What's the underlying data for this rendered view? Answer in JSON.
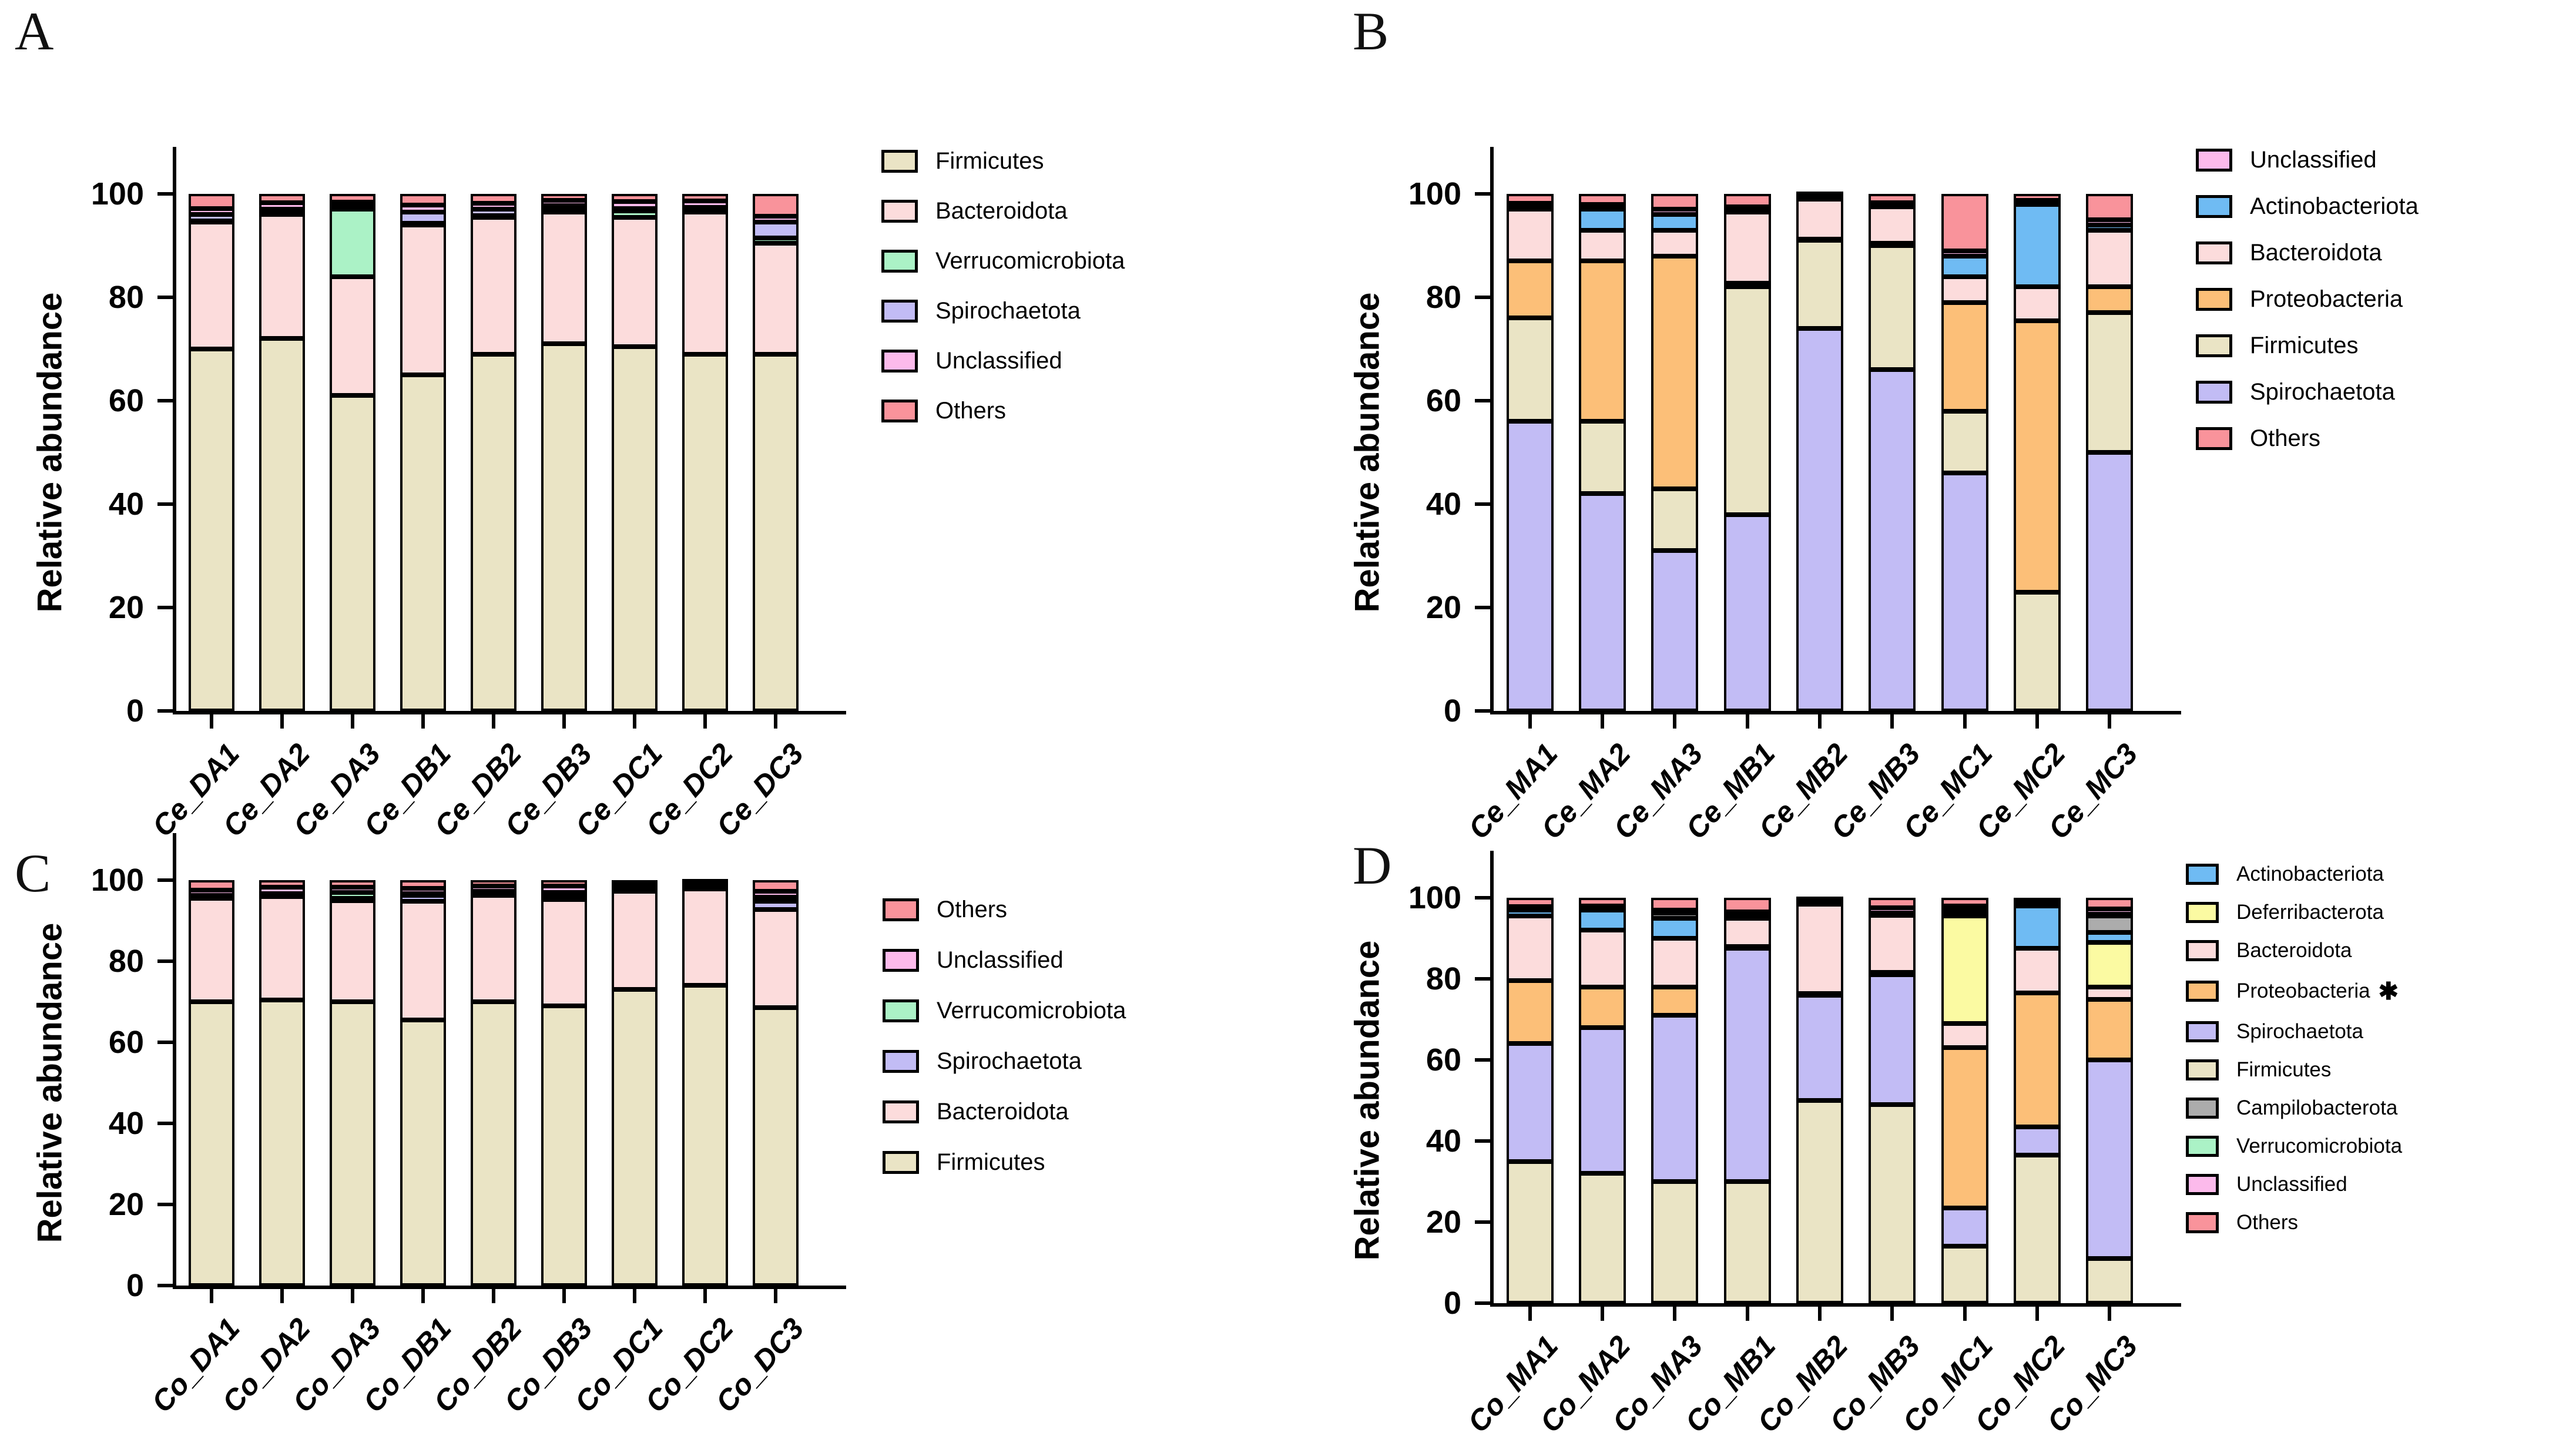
{
  "chart_data": [
    {
      "panel": "A",
      "type": "bar",
      "stacked": true,
      "ylabel": "Relative abundance",
      "ylim": [
        0,
        100
      ],
      "yticks": [
        0,
        20,
        40,
        60,
        80,
        100
      ],
      "grid": false,
      "legend_position": "right",
      "categories": [
        "Ce_DA1",
        "Ce_DA2",
        "Ce_DA3",
        "Ce_DB1",
        "Ce_DB2",
        "Ce_DB3",
        "Ce_DC1",
        "Ce_DC2",
        "Ce_DC3"
      ],
      "series": [
        {
          "name": "Firmicutes",
          "color": "#EAE4C5",
          "values": [
            70,
            72,
            61,
            65,
            69,
            71,
            70.5,
            69,
            69
          ]
        },
        {
          "name": "Bacteroidota",
          "color": "#FCDCDC",
          "values": [
            24.5,
            24,
            23,
            29,
            26.5,
            25.5,
            25,
            27.5,
            21.5
          ]
        },
        {
          "name": "Verrucomicrobiota",
          "color": "#ABF2C6",
          "values": [
            0.3,
            0.3,
            13,
            0.3,
            0.3,
            0.4,
            1.2,
            0.3,
            1
          ]
        },
        {
          "name": "Spirochaetota",
          "color": "#C2BCF5",
          "values": [
            1.2,
            0.8,
            0.6,
            2.2,
            1.2,
            0.8,
            0.5,
            0.6,
            3
          ]
        },
        {
          "name": "Unclassified",
          "color": "#FCBAEB",
          "values": [
            1.2,
            1.2,
            0.8,
            1.3,
            1.2,
            1.1,
            1.3,
            1.2,
            1.2
          ]
        },
        {
          "name": "Others",
          "color": "#F9939B",
          "values": [
            2.8,
            1.7,
            1.6,
            2.2,
            1.8,
            1.2,
            1.5,
            1.4,
            4.3
          ]
        }
      ],
      "legend": [
        {
          "label": "Firmicutes",
          "color": "#EAE4C5"
        },
        {
          "label": "Bacteroidota",
          "color": "#FCDCDC"
        },
        {
          "label": "Verrucomicrobiota",
          "color": "#ABF2C6"
        },
        {
          "label": "Spirochaetota",
          "color": "#C2BCF5"
        },
        {
          "label": "Unclassified",
          "color": "#FCBAEB"
        },
        {
          "label": "Others",
          "color": "#F9939B"
        }
      ]
    },
    {
      "panel": "B",
      "type": "bar",
      "stacked": true,
      "ylabel": "Relative abundance",
      "ylim": [
        0,
        100
      ],
      "yticks": [
        0,
        20,
        40,
        60,
        80,
        100
      ],
      "grid": false,
      "legend_position": "right",
      "categories": [
        "Ce_MA1",
        "Ce_MA2",
        "Ce_MA3",
        "Ce_MB1",
        "Ce_MB2",
        "Ce_MB3",
        "Ce_MC1",
        "Ce_MC2",
        "Ce_MC3"
      ],
      "series": [
        {
          "name": "Spirochaetota",
          "color": "#C2BCF5",
          "values": [
            56,
            42,
            31,
            38,
            74,
            66,
            46,
            0,
            50
          ]
        },
        {
          "name": "Firmicutes",
          "color": "#EAE4C5",
          "values": [
            20,
            14,
            12,
            44,
            17,
            24,
            12,
            23,
            27
          ]
        },
        {
          "name": "Proteobacteria",
          "color": "#FCBF78",
          "values": [
            11,
            31,
            45,
            0.7,
            0.3,
            0.5,
            21,
            52.5,
            5
          ]
        },
        {
          "name": "Bacteroidota",
          "color": "#FCDCDC",
          "values": [
            10,
            6,
            5,
            13.8,
            7.7,
            7,
            5,
            6.5,
            11
          ]
        },
        {
          "name": "Actinobacteriota",
          "color": "#6FBBF3",
          "values": [
            0.6,
            4,
            3,
            0.3,
            0.2,
            0.3,
            4,
            16,
            1
          ]
        },
        {
          "name": "Unclassified",
          "color": "#FCBAEB",
          "values": [
            0.6,
            1,
            1,
            0.7,
            0.3,
            0.5,
            1,
            0.8,
            1
          ]
        },
        {
          "name": "Others",
          "color": "#F9939B",
          "values": [
            1.8,
            2,
            3,
            2.5,
            0.5,
            1.7,
            11,
            1.2,
            5
          ]
        }
      ],
      "legend": [
        {
          "label": "Unclassified",
          "color": "#FCBAEB"
        },
        {
          "label": "Actinobacteriota",
          "color": "#6FBBF3"
        },
        {
          "label": "Bacteroidota",
          "color": "#FCDCDC"
        },
        {
          "label": "Proteobacteria",
          "color": "#FCBF78"
        },
        {
          "label": "Firmicutes",
          "color": "#EAE4C5"
        },
        {
          "label": "Spirochaetota",
          "color": "#C2BCF5"
        },
        {
          "label": "Others",
          "color": "#F9939B"
        }
      ]
    },
    {
      "panel": "C",
      "type": "bar",
      "stacked": true,
      "ylabel": "Relative abundance",
      "ylim": [
        0,
        100
      ],
      "yticks": [
        0,
        20,
        40,
        60,
        80,
        100
      ],
      "grid": false,
      "legend_position": "right",
      "categories": [
        "Co_DA1",
        "Co_DA2",
        "Co_DA3",
        "Co_DB1",
        "Co_DB2",
        "Co_DB3",
        "Co_DC1",
        "Co_DC2",
        "Co_DC3"
      ],
      "series": [
        {
          "name": "Firmicutes",
          "color": "#EAE4C5",
          "values": [
            70,
            70.5,
            70,
            65.5,
            70,
            69,
            73,
            74,
            68.5
          ]
        },
        {
          "name": "Bacteroidota",
          "color": "#FCDCDC",
          "values": [
            25.5,
            25.5,
            25,
            29.3,
            26.3,
            26.2,
            24.3,
            23.8,
            24.3
          ]
        },
        {
          "name": "Spirochaetota",
          "color": "#C2BCF5",
          "values": [
            0.4,
            0.4,
            0.5,
            1.5,
            0.5,
            0.8,
            0.3,
            0.3,
            2
          ]
        },
        {
          "name": "Verrucomicrobiota",
          "color": "#ABF2C6",
          "values": [
            0.3,
            0.3,
            1.5,
            0.3,
            0.4,
            1,
            0.3,
            0.2,
            1
          ]
        },
        {
          "name": "Unclassified",
          "color": "#FCBAEB",
          "values": [
            1.3,
            1.5,
            1.2,
            1.4,
            1.3,
            1.5,
            1,
            0.8,
            1.5
          ]
        },
        {
          "name": "Others",
          "color": "#F9939B",
          "values": [
            2.5,
            1.8,
            1.8,
            2,
            1.5,
            1.5,
            1.1,
            0.9,
            2.7
          ]
        }
      ],
      "legend": [
        {
          "label": "Others",
          "color": "#F9939B"
        },
        {
          "label": "Unclassified",
          "color": "#FCBAEB"
        },
        {
          "label": "Verrucomicrobiota",
          "color": "#ABF2C6"
        },
        {
          "label": "Spirochaetota",
          "color": "#C2BCF5"
        },
        {
          "label": "Bacteroidota",
          "color": "#FCDCDC"
        },
        {
          "label": "Firmicutes",
          "color": "#EAE4C5"
        }
      ]
    },
    {
      "panel": "D",
      "type": "bar",
      "stacked": true,
      "ylabel": "Relative abundance",
      "ylim": [
        0,
        100
      ],
      "yticks": [
        0,
        20,
        40,
        60,
        80,
        100
      ],
      "grid": false,
      "legend_position": "right",
      "categories": [
        "Co_MA1",
        "Co_MA2",
        "Co_MA3",
        "Co_MB1",
        "Co_MB2",
        "Co_MB3",
        "Co_MC1",
        "Co_MC2",
        "Co_MC3"
      ],
      "series": [
        {
          "name": "Firmicutes",
          "color": "#EAE4C5",
          "values": [
            35,
            32,
            30,
            30,
            50,
            49,
            14,
            36.5,
            11
          ]
        },
        {
          "name": "Spirochaetota",
          "color": "#C2BCF5",
          "values": [
            29,
            36,
            41,
            57.5,
            26,
            32,
            9.5,
            7,
            49
          ]
        },
        {
          "name": "Proteobacteria",
          "color": "#FCBF78",
          "values": [
            15.5,
            10,
            7,
            0.5,
            0.4,
            0.6,
            39.5,
            33,
            15
          ]
        },
        {
          "name": "Bacteroidota",
          "color": "#FCDCDC",
          "values": [
            16,
            14,
            12,
            7,
            22,
            14,
            6,
            11,
            3
          ]
        },
        {
          "name": "Deferribacterota",
          "color": "#FBFAA2",
          "values": [
            0,
            0,
            0,
            0,
            0,
            0,
            26.5,
            0,
            11
          ]
        },
        {
          "name": "Actinobacteriota",
          "color": "#6FBBF3",
          "values": [
            1.5,
            5,
            5,
            0.3,
            0.2,
            0.4,
            1.2,
            10.5,
            2.5
          ]
        },
        {
          "name": "Campilobacterota",
          "color": "#ACACAC",
          "values": [
            0,
            0,
            1.2,
            0,
            0,
            0,
            0,
            0,
            4
          ]
        },
        {
          "name": "Verrucomicrobiota",
          "color": "#ABF2C6",
          "values": [
            0,
            0,
            0.3,
            0.2,
            0.2,
            0.2,
            0.3,
            0,
            0.5
          ]
        },
        {
          "name": "Unclassified",
          "color": "#FCBAEB",
          "values": [
            0.8,
            1,
            0.5,
            1,
            0.4,
            1.3,
            1,
            0.8,
            1.3
          ]
        },
        {
          "name": "Others",
          "color": "#F9939B",
          "values": [
            2.2,
            2,
            3,
            3.5,
            0.8,
            2.5,
            2,
            1.2,
            2.7
          ]
        }
      ],
      "legend": [
        {
          "label": "Actinobacteriota",
          "color": "#6FBBF3"
        },
        {
          "label": "Deferribacterota",
          "color": "#FBFAA2"
        },
        {
          "label": "Bacteroidota",
          "color": "#FCDCDC"
        },
        {
          "label": "Proteobacteria",
          "color": "#FCBF78",
          "marker": "✱"
        },
        {
          "label": "Spirochaetota",
          "color": "#C2BCF5"
        },
        {
          "label": "Firmicutes",
          "color": "#EAE4C5"
        },
        {
          "label": "Campilobacterota",
          "color": "#ACACAC"
        },
        {
          "label": "Verrucomicrobiota",
          "color": "#ABF2C6"
        },
        {
          "label": "Unclassified",
          "color": "#FCBAEB"
        },
        {
          "label": "Others",
          "color": "#F9939B"
        }
      ]
    }
  ]
}
